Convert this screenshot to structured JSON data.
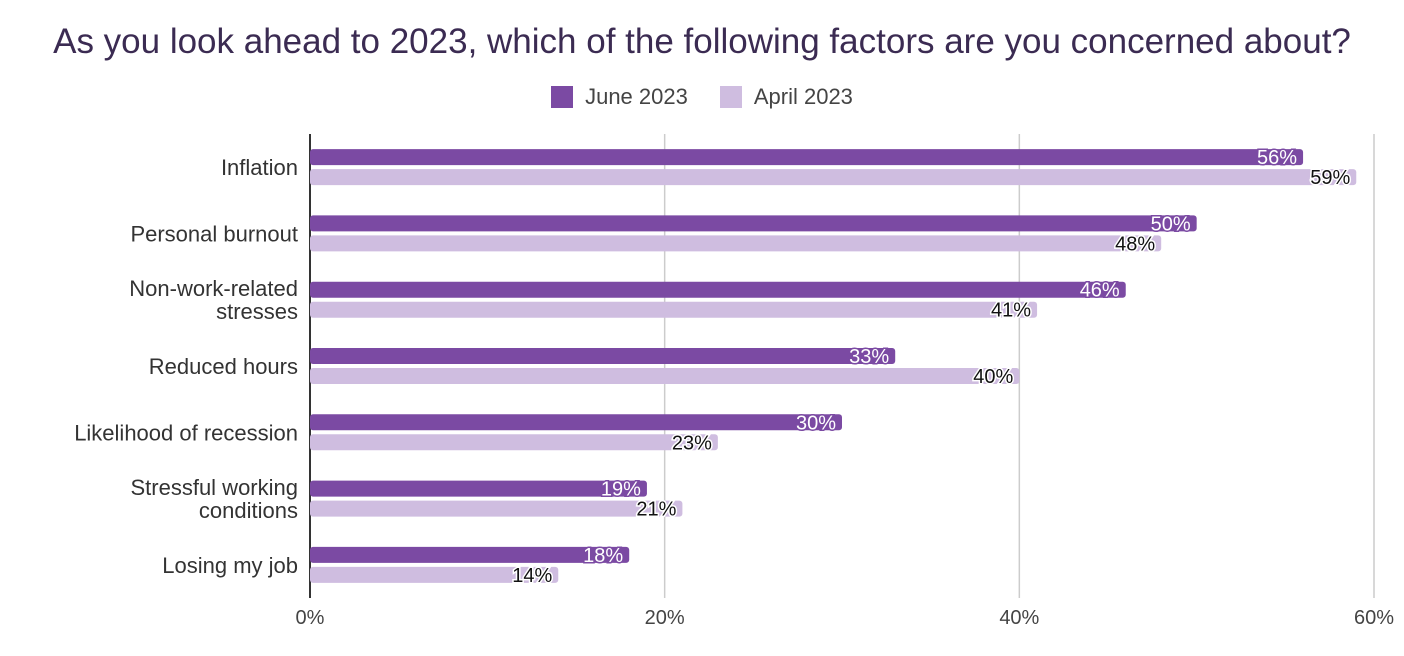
{
  "chart_data": {
    "type": "bar",
    "orientation": "horizontal",
    "title": "As you look ahead to 2023, which of the following factors are you concerned about?",
    "categories": [
      [
        "Inflation"
      ],
      [
        "Personal burnout"
      ],
      [
        "Non-work-related",
        "stresses"
      ],
      [
        "Reduced hours"
      ],
      [
        "Likelihood of recession"
      ],
      [
        "Stressful working",
        "conditions"
      ],
      [
        "Losing my job"
      ]
    ],
    "series": [
      {
        "name": "June 2023",
        "color": "#7b4aa3",
        "values": [
          56,
          50,
          46,
          33,
          30,
          19,
          18
        ],
        "labels": [
          "56%",
          "50%",
          "46%",
          "33%",
          "30%",
          "19%",
          "18%"
        ]
      },
      {
        "name": "April 2023",
        "color": "#cfbde0",
        "values": [
          59,
          48,
          41,
          40,
          23,
          21,
          14
        ],
        "labels": [
          "59%",
          "48%",
          "41%",
          "40%",
          "23%",
          "21%",
          "14%"
        ]
      }
    ],
    "xlim": [
      0,
      60
    ],
    "xticks": [
      0,
      20,
      40,
      60
    ],
    "xtick_labels": [
      "0%",
      "20%",
      "40%",
      "60%"
    ],
    "grid": true,
    "legend_position": "top-center"
  }
}
